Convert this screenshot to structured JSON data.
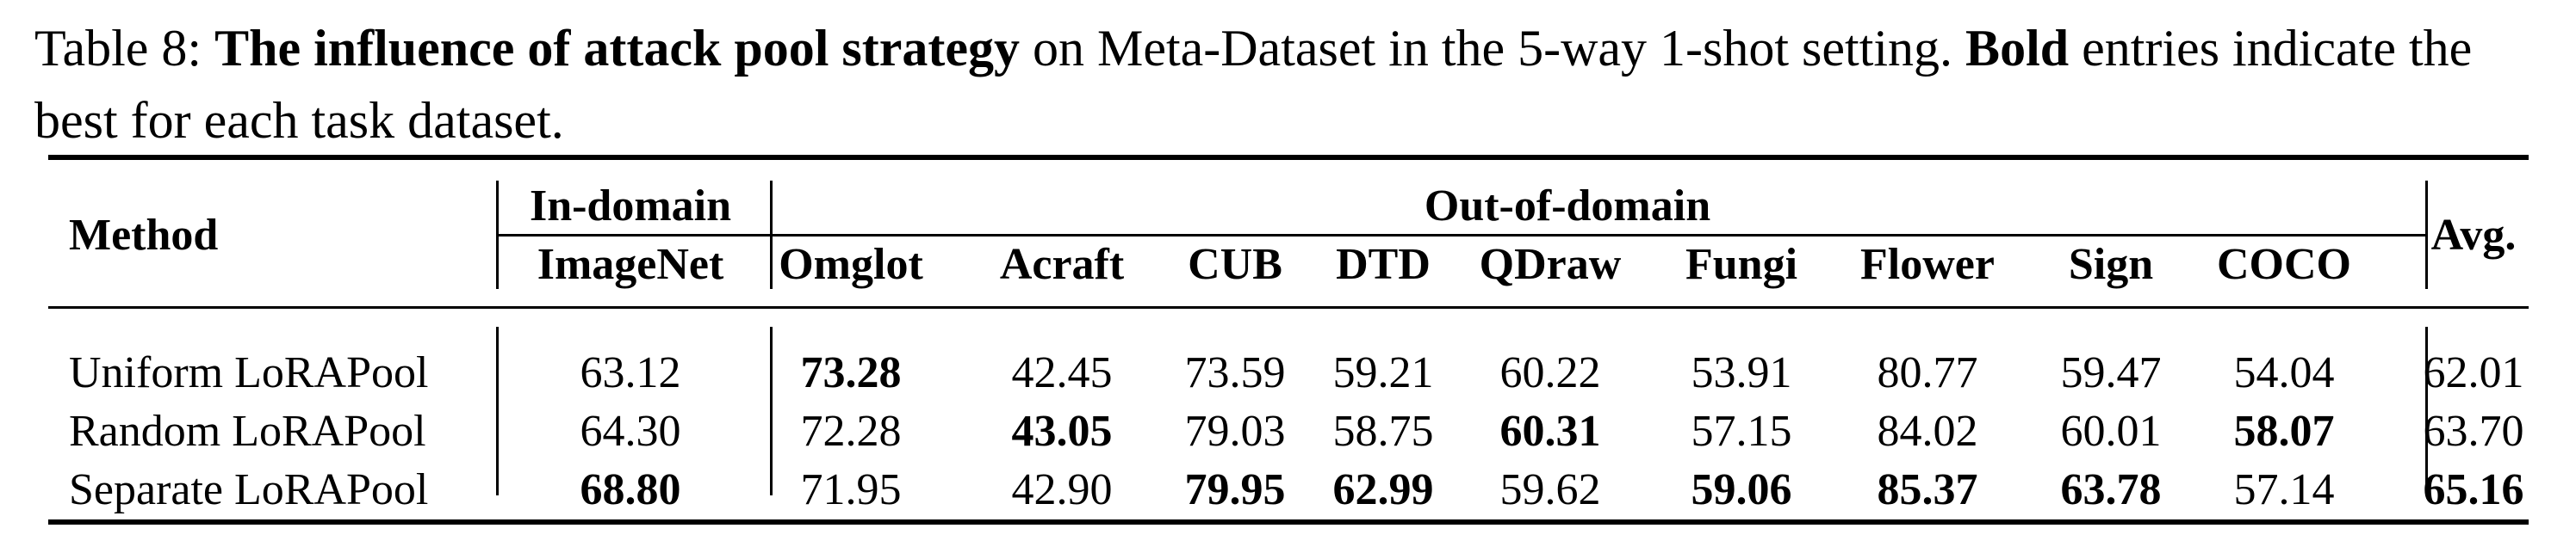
{
  "caption": {
    "label": "Table 8:",
    "bold_title": "The influence of attack pool strategy",
    "text_mid": "on Meta-Dataset in the 5-way 1-shot setting.",
    "bold_word": "Bold",
    "text_end": "entries indicate the best for each task dataset."
  },
  "table": {
    "header": {
      "method": "Method",
      "in_domain": "In-domain",
      "out_of_domain": "Out-of-domain",
      "avg": "Avg.",
      "columns": [
        "ImageNet",
        "Omglot",
        "Acraft",
        "CUB",
        "DTD",
        "QDraw",
        "Fungi",
        "Flower",
        "Sign",
        "COCO"
      ]
    },
    "rows": [
      {
        "method": "Uniform LoRAPool",
        "values": [
          "63.12",
          "73.28",
          "42.45",
          "73.59",
          "59.21",
          "60.22",
          "53.91",
          "80.77",
          "59.47",
          "54.04"
        ],
        "avg": "62.01",
        "bold": [
          false,
          true,
          false,
          false,
          false,
          false,
          false,
          false,
          false,
          false
        ],
        "avg_bold": false
      },
      {
        "method": "Random LoRAPool",
        "values": [
          "64.30",
          "72.28",
          "43.05",
          "79.03",
          "58.75",
          "60.31",
          "57.15",
          "84.02",
          "60.01",
          "58.07"
        ],
        "avg": "63.70",
        "bold": [
          false,
          false,
          true,
          false,
          false,
          true,
          false,
          false,
          false,
          true
        ],
        "avg_bold": false
      },
      {
        "method": "Separate LoRAPool",
        "values": [
          "68.80",
          "71.95",
          "42.90",
          "79.95",
          "62.99",
          "59.62",
          "59.06",
          "85.37",
          "63.78",
          "57.14"
        ],
        "avg": "65.16",
        "bold": [
          true,
          false,
          false,
          true,
          true,
          false,
          true,
          true,
          true,
          false
        ],
        "avg_bold": true
      }
    ]
  }
}
